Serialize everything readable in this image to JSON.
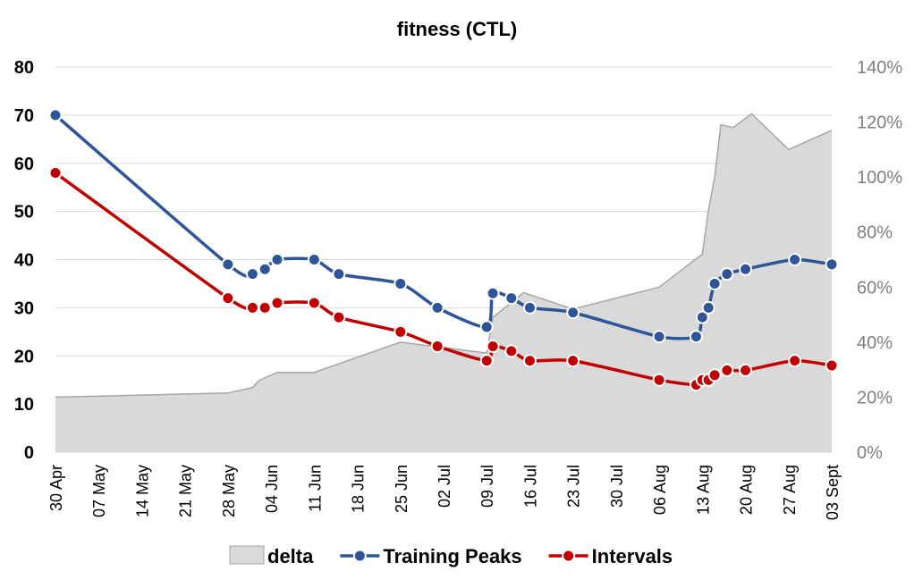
{
  "chart_data": {
    "type": "line",
    "title": "fitness (CTL)",
    "xlabel": "",
    "ylabel": "",
    "x_axis": {
      "type": "date",
      "range": [
        "2024-04-30",
        "2024-09-03"
      ],
      "ticks": [
        {
          "date": "2024-04-30",
          "label": "30 Apr"
        },
        {
          "date": "2024-05-07",
          "label": "07 May"
        },
        {
          "date": "2024-05-14",
          "label": "14 May"
        },
        {
          "date": "2024-05-21",
          "label": "21 May"
        },
        {
          "date": "2024-05-28",
          "label": "28 May"
        },
        {
          "date": "2024-06-04",
          "label": "04 Jun"
        },
        {
          "date": "2024-06-11",
          "label": "11 Jun"
        },
        {
          "date": "2024-06-18",
          "label": "18 Jun"
        },
        {
          "date": "2024-06-25",
          "label": "25 Jun"
        },
        {
          "date": "2024-07-02",
          "label": "02 Jul"
        },
        {
          "date": "2024-07-09",
          "label": "09 Jul"
        },
        {
          "date": "2024-07-16",
          "label": "16 Jul"
        },
        {
          "date": "2024-07-23",
          "label": "23 Jul"
        },
        {
          "date": "2024-07-30",
          "label": "30 Jul"
        },
        {
          "date": "2024-08-06",
          "label": "06 Aug"
        },
        {
          "date": "2024-08-13",
          "label": "13 Aug"
        },
        {
          "date": "2024-08-20",
          "label": "20 Aug"
        },
        {
          "date": "2024-08-27",
          "label": "27 Aug"
        },
        {
          "date": "2024-09-03",
          "label": "03 Sept"
        }
      ]
    },
    "y_left": {
      "min": 0,
      "max": 80,
      "step": 10,
      "ticks": [
        "0",
        "10",
        "20",
        "30",
        "40",
        "50",
        "60",
        "70",
        "80"
      ]
    },
    "y_right": {
      "min": 0,
      "max": 1.4,
      "step": 0.2,
      "ticks": [
        "0%",
        "20%",
        "40%",
        "60%",
        "80%",
        "100%",
        "120%",
        "140%"
      ]
    },
    "grid": true,
    "legend_position": "bottom",
    "series": [
      {
        "name": "delta",
        "type": "area",
        "axis": "right",
        "color": "#d9d9d9",
        "stroke": "#a6a6a6",
        "points": [
          {
            "x": "2024-04-30",
            "y": 0.2
          },
          {
            "x": "2024-05-28",
            "y": 0.215
          },
          {
            "x": "2024-06-01",
            "y": 0.235
          },
          {
            "x": "2024-06-02",
            "y": 0.26
          },
          {
            "x": "2024-06-05",
            "y": 0.29
          },
          {
            "x": "2024-06-11",
            "y": 0.29
          },
          {
            "x": "2024-06-25",
            "y": 0.4
          },
          {
            "x": "2024-07-09",
            "y": 0.36
          },
          {
            "x": "2024-07-10",
            "y": 0.49
          },
          {
            "x": "2024-07-15",
            "y": 0.58
          },
          {
            "x": "2024-07-23",
            "y": 0.52
          },
          {
            "x": "2024-08-06",
            "y": 0.6
          },
          {
            "x": "2024-08-13",
            "y": 0.72
          },
          {
            "x": "2024-08-14",
            "y": 0.88
          },
          {
            "x": "2024-08-15",
            "y": 1.0
          },
          {
            "x": "2024-08-16",
            "y": 1.19
          },
          {
            "x": "2024-08-18",
            "y": 1.18
          },
          {
            "x": "2024-08-21",
            "y": 1.23
          },
          {
            "x": "2024-08-27",
            "y": 1.1
          },
          {
            "x": "2024-09-03",
            "y": 1.17
          }
        ]
      },
      {
        "name": "Training Peaks",
        "type": "line",
        "axis": "left",
        "color": "#2e5597",
        "points": [
          {
            "x": "2024-04-30",
            "y": 70
          },
          {
            "x": "2024-05-28",
            "y": 39
          },
          {
            "x": "2024-06-01",
            "y": 37
          },
          {
            "x": "2024-06-03",
            "y": 38
          },
          {
            "x": "2024-06-05",
            "y": 40
          },
          {
            "x": "2024-06-11",
            "y": 40
          },
          {
            "x": "2024-06-15",
            "y": 37
          },
          {
            "x": "2024-06-25",
            "y": 35
          },
          {
            "x": "2024-07-01",
            "y": 30
          },
          {
            "x": "2024-07-09",
            "y": 26
          },
          {
            "x": "2024-07-10",
            "y": 33
          },
          {
            "x": "2024-07-13",
            "y": 32
          },
          {
            "x": "2024-07-16",
            "y": 30
          },
          {
            "x": "2024-07-23",
            "y": 29
          },
          {
            "x": "2024-08-06",
            "y": 24
          },
          {
            "x": "2024-08-12",
            "y": 24
          },
          {
            "x": "2024-08-13",
            "y": 28
          },
          {
            "x": "2024-08-14",
            "y": 30
          },
          {
            "x": "2024-08-15",
            "y": 35
          },
          {
            "x": "2024-08-17",
            "y": 37
          },
          {
            "x": "2024-08-20",
            "y": 38
          },
          {
            "x": "2024-08-28",
            "y": 40
          },
          {
            "x": "2024-09-03",
            "y": 39
          }
        ]
      },
      {
        "name": "Intervals",
        "type": "line",
        "axis": "left",
        "color": "#c00000",
        "points": [
          {
            "x": "2024-04-30",
            "y": 58
          },
          {
            "x": "2024-05-28",
            "y": 32
          },
          {
            "x": "2024-06-01",
            "y": 30
          },
          {
            "x": "2024-06-03",
            "y": 30
          },
          {
            "x": "2024-06-05",
            "y": 31
          },
          {
            "x": "2024-06-11",
            "y": 31
          },
          {
            "x": "2024-06-15",
            "y": 28
          },
          {
            "x": "2024-06-25",
            "y": 25
          },
          {
            "x": "2024-07-01",
            "y": 22
          },
          {
            "x": "2024-07-09",
            "y": 19
          },
          {
            "x": "2024-07-10",
            "y": 22
          },
          {
            "x": "2024-07-13",
            "y": 21
          },
          {
            "x": "2024-07-16",
            "y": 19
          },
          {
            "x": "2024-07-23",
            "y": 19
          },
          {
            "x": "2024-08-06",
            "y": 15
          },
          {
            "x": "2024-08-12",
            "y": 14
          },
          {
            "x": "2024-08-13",
            "y": 15
          },
          {
            "x": "2024-08-14",
            "y": 15
          },
          {
            "x": "2024-08-15",
            "y": 16
          },
          {
            "x": "2024-08-17",
            "y": 17
          },
          {
            "x": "2024-08-20",
            "y": 17
          },
          {
            "x": "2024-08-28",
            "y": 19
          },
          {
            "x": "2024-09-03",
            "y": 18
          }
        ]
      }
    ]
  }
}
